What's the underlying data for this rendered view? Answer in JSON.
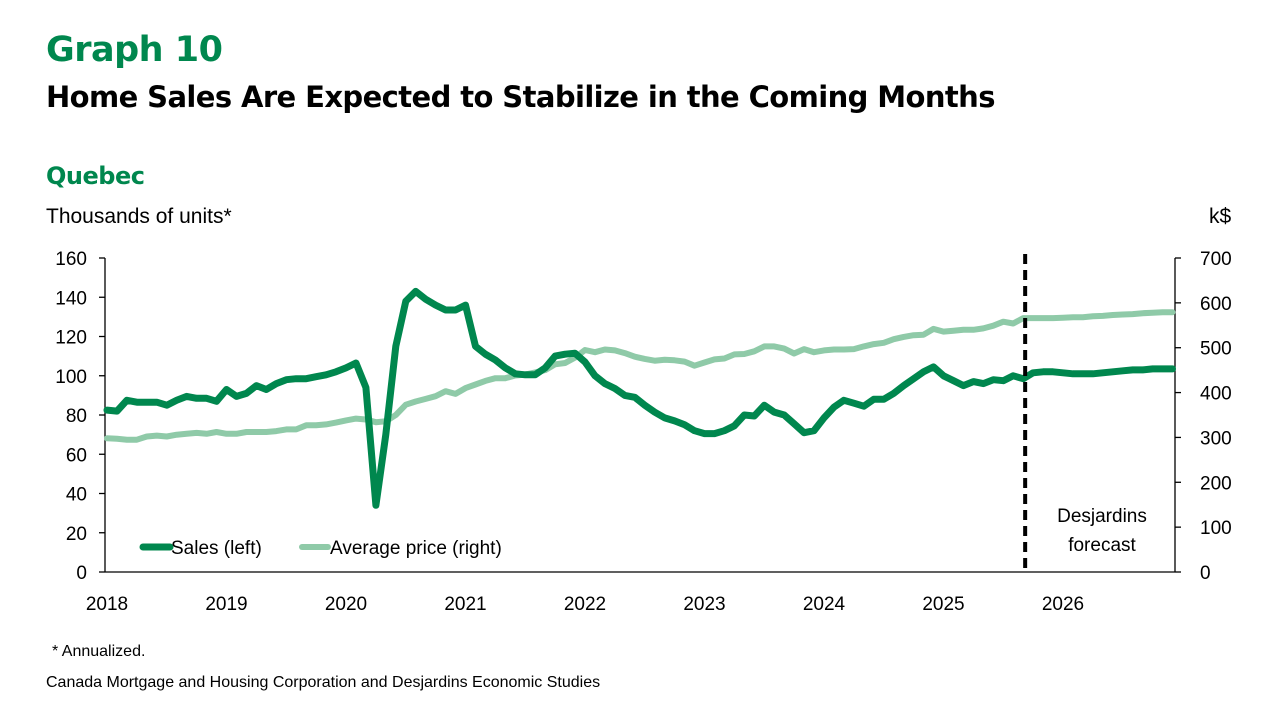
{
  "header": {
    "graph_number": "Graph 10",
    "title": "Home Sales Are Expected to Stabilize in the Coming Months",
    "region": "Quebec"
  },
  "footer": {
    "footnote": "* Annualized.",
    "source": "Canada Mortgage and Housing Corporation and Desjardins Economic Studies"
  },
  "colors": {
    "sales": "#00874e",
    "price": "#8fcaa8",
    "axis": "#000000",
    "forecast_line": "#000000"
  },
  "chart_data": {
    "type": "line",
    "title": "Home Sales Are Expected to Stabilize in the Coming Months",
    "subtitle": "Quebec",
    "xlabel": "",
    "ylabel": "Thousands of units*",
    "ylabel_right": "k$",
    "ylim": [
      0,
      160
    ],
    "ylim_right": [
      0,
      700
    ],
    "yticks": [
      0,
      20,
      40,
      60,
      80,
      100,
      120,
      140,
      160
    ],
    "yticks_right": [
      0,
      100,
      200,
      300,
      400,
      500,
      600,
      700
    ],
    "xticks": [
      "2018",
      "2019",
      "2020",
      "2021",
      "2022",
      "2023",
      "2024",
      "2025",
      "2026"
    ],
    "x_start": "2018-01",
    "x_end": "2026-12",
    "frequency": "monthly",
    "grid": false,
    "legend_position": "bottom-left",
    "annotation": {
      "text_lines": [
        "Desjardins",
        "forecast"
      ],
      "forecast_start": "2025-10"
    },
    "series": [
      {
        "name": "Sales (left)",
        "axis": "left",
        "values": [
          82.5,
          82,
          87.5,
          86.5,
          86.5,
          86.5,
          85,
          87.5,
          89.5,
          88.5,
          88.5,
          87,
          93,
          89.5,
          91,
          95,
          93,
          96,
          98,
          98.5,
          98.5,
          99.5,
          100.5,
          102,
          104,
          106.5,
          94,
          34,
          70,
          115,
          138,
          143,
          139,
          136,
          133.5,
          133.5,
          136,
          115,
          111,
          108,
          104,
          101,
          100.5,
          100.5,
          104,
          110,
          111,
          111.5,
          107,
          100,
          96,
          93.5,
          90,
          89,
          85,
          81.5,
          78.5,
          77,
          75,
          72,
          70.5,
          70.5,
          72,
          74.5,
          80,
          79.5,
          85,
          81.5,
          80,
          75.5,
          71,
          72,
          78.5,
          84,
          87.5,
          86,
          84.5,
          88,
          88,
          91,
          95,
          98.5,
          102,
          104.5,
          100,
          97.5,
          95,
          97,
          96,
          98,
          97.5,
          100,
          98.5,
          101.5,
          102,
          102,
          101.5,
          101,
          101,
          101,
          101.5,
          102,
          102.5,
          103,
          103,
          103.5,
          103.5,
          103.5
        ]
      },
      {
        "name": "Average price (right)",
        "axis": "right",
        "values": [
          298,
          297,
          295,
          295,
          302,
          304,
          302,
          306,
          308,
          310,
          308,
          312,
          308,
          308,
          312,
          312,
          312,
          314,
          318,
          318,
          327,
          327,
          329,
          333,
          338,
          342,
          340,
          334,
          336,
          350,
          373,
          380,
          386,
          392,
          403,
          397,
          410,
          418,
          426,
          432,
          432,
          438,
          440,
          445,
          450,
          463,
          466,
          478,
          495,
          490,
          496,
          494,
          488,
          480,
          475,
          471,
          473,
          472,
          469,
          460,
          467,
          474,
          476,
          485,
          486,
          492,
          503,
          503,
          498,
          487,
          497,
          490,
          494,
          496,
          496,
          497,
          503,
          508,
          511,
          519,
          524,
          528,
          529,
          542,
          536,
          538,
          540,
          540,
          543,
          549,
          558,
          554,
          566,
          566,
          566,
          566,
          567,
          568,
          568,
          570,
          571,
          573,
          574,
          575,
          577,
          578,
          579,
          579
        ]
      }
    ]
  }
}
